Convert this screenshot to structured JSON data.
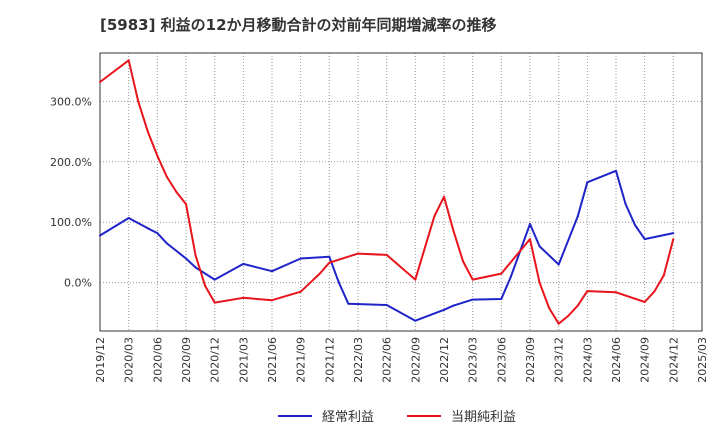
{
  "chart_data": {
    "type": "line",
    "title": "[5983]  利益の12か月移動合計の対前年同期増減率の推移",
    "x": [
      "2019/12",
      "2020/03",
      "2020/06",
      "2020/09",
      "2020/12",
      "2021/03",
      "2021/06",
      "2021/09",
      "2021/12",
      "2022/03",
      "2022/06",
      "2022/09",
      "2022/12",
      "2023/03",
      "2023/06",
      "2023/09",
      "2023/12",
      "2024/03",
      "2024/06",
      "2024/09",
      "2024/12",
      "2025/03"
    ],
    "xlabel": "",
    "ylabel": "",
    "ylim": [
      -80,
      380
    ],
    "yticks": [
      0,
      100,
      200,
      300
    ],
    "ytick_labels": [
      "0.0%",
      "100.0%",
      "200.0%",
      "300.0%"
    ],
    "grid": true,
    "legend_position": "bottom-center",
    "series": [
      {
        "name": "経常利益",
        "color": "#1f24c8",
        "points": [
          [
            "2019/12",
            78
          ],
          [
            "2020/03",
            107
          ],
          [
            "2020/05",
            90
          ],
          [
            "2020/06",
            82
          ],
          [
            "2020/07",
            65
          ],
          [
            "2020/09",
            40
          ],
          [
            "2020/10",
            25
          ],
          [
            "2020/12",
            5
          ],
          [
            "2021/03",
            31
          ],
          [
            "2021/06",
            19
          ],
          [
            "2021/09",
            40
          ],
          [
            "2021/12",
            43
          ],
          [
            "2022/01",
            0
          ],
          [
            "2022/02",
            -35
          ],
          [
            "2022/06",
            -37
          ],
          [
            "2022/09",
            -63
          ],
          [
            "2022/12",
            -45
          ],
          [
            "2023/01",
            -38
          ],
          [
            "2023/03",
            -28
          ],
          [
            "2023/06",
            -27
          ],
          [
            "2023/07",
            10
          ],
          [
            "2023/09",
            97
          ],
          [
            "2023/10",
            60
          ],
          [
            "2023/12",
            30
          ],
          [
            "2024/02",
            110
          ],
          [
            "2024/03",
            166
          ],
          [
            "2024/06",
            185
          ],
          [
            "2024/07",
            130
          ],
          [
            "2024/08",
            95
          ],
          [
            "2024/09",
            72
          ],
          [
            "2024/12",
            82
          ]
        ]
      },
      {
        "name": "当期純利益",
        "color": "#e8141b",
        "points": [
          [
            "2019/12",
            332
          ],
          [
            "2020/03",
            368
          ],
          [
            "2020/04",
            300
          ],
          [
            "2020/05",
            250
          ],
          [
            "2020/06",
            210
          ],
          [
            "2020/07",
            175
          ],
          [
            "2020/08",
            150
          ],
          [
            "2020/09",
            130
          ],
          [
            "2020/10",
            45
          ],
          [
            "2020/11",
            -5
          ],
          [
            "2020/12",
            -33
          ],
          [
            "2021/03",
            -25
          ],
          [
            "2021/06",
            -29
          ],
          [
            "2021/09",
            -15
          ],
          [
            "2021/10",
            0
          ],
          [
            "2021/11",
            15
          ],
          [
            "2021/12",
            33
          ],
          [
            "2022/03",
            48
          ],
          [
            "2022/06",
            46
          ],
          [
            "2022/09",
            5
          ],
          [
            "2022/11",
            110
          ],
          [
            "2022/12",
            142
          ],
          [
            "2023/01",
            85
          ],
          [
            "2023/02",
            35
          ],
          [
            "2023/03",
            5
          ],
          [
            "2023/06",
            15
          ],
          [
            "2023/09",
            72
          ],
          [
            "2023/10",
            0
          ],
          [
            "2023/11",
            -42
          ],
          [
            "2023/12",
            -68
          ],
          [
            "2024/01",
            -55
          ],
          [
            "2024/02",
            -38
          ],
          [
            "2024/03",
            -14
          ],
          [
            "2024/06",
            -16
          ],
          [
            "2024/09",
            -32
          ],
          [
            "2024/10",
            -15
          ],
          [
            "2024/11",
            12
          ],
          [
            "2024/12",
            72
          ]
        ]
      }
    ]
  }
}
